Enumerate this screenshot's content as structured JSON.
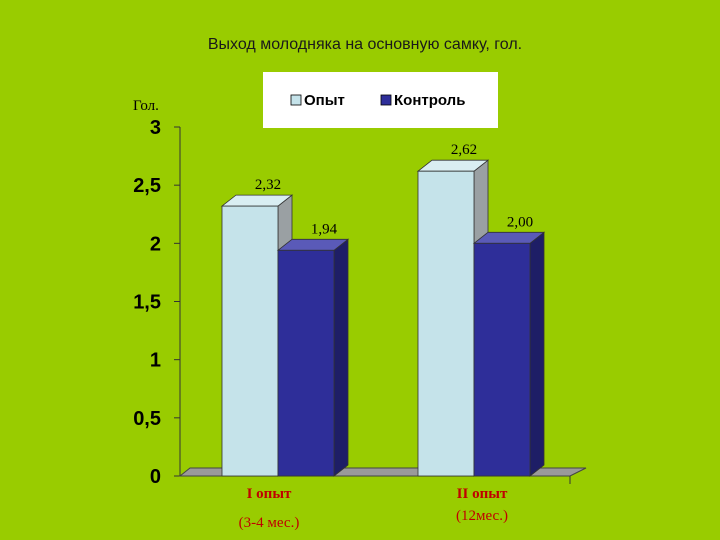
{
  "chart_data": {
    "type": "bar",
    "title": "Выход молодняка на основную самку, гол.",
    "ylabel": "Гол.",
    "ylim": [
      0,
      3
    ],
    "yticks": [
      "0",
      "0,5",
      "1",
      "1,5",
      "2",
      "2,5",
      "3"
    ],
    "categories": [
      {
        "label": "I опыт",
        "sublabel": "(3-4 мес.)"
      },
      {
        "label": "II опыт",
        "sublabel": "(12мес.)"
      }
    ],
    "series": [
      {
        "name": "Опыт",
        "color": "#c5e3ea",
        "values": [
          2.32,
          2.62
        ],
        "labels": [
          "2,32",
          "2,62"
        ]
      },
      {
        "name": "Контроль",
        "color": "#2e2e99",
        "values": [
          1.94,
          2.0
        ],
        "labels": [
          "1,94",
          "2,00"
        ]
      }
    ],
    "legend_position": "top",
    "grid": false
  }
}
